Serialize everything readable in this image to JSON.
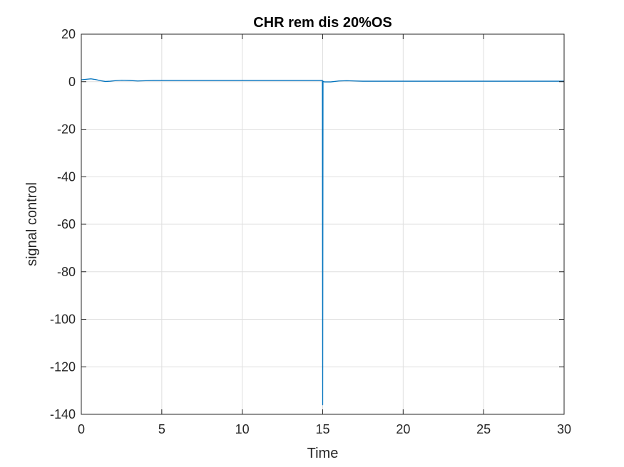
{
  "chart_data": {
    "type": "line",
    "title": "CHR rem dis 20%OS",
    "xlabel": "Time",
    "ylabel": "signal control",
    "xlim": [
      0,
      30
    ],
    "ylim": [
      -140,
      20
    ],
    "xticks": [
      0,
      5,
      10,
      15,
      20,
      25,
      30
    ],
    "yticks": [
      20,
      0,
      -20,
      -40,
      -60,
      -80,
      -100,
      -120,
      -140
    ],
    "xtick_labels": [
      "0",
      "5",
      "10",
      "15",
      "20",
      "25",
      "30"
    ],
    "ytick_labels": [
      "20",
      "0",
      "-20",
      "-40",
      "-60",
      "-80",
      "-100",
      "-120",
      "-140"
    ],
    "grid": true,
    "line_color": "#0072BD",
    "grid_color": "#dfdfdf",
    "axis_color": "#262626",
    "series": [
      {
        "x": [
          0,
          0.3,
          0.6,
          0.9,
          1.2,
          1.5,
          1.8,
          2.1,
          2.5,
          3.0,
          3.5,
          4.0,
          4.5,
          5.0,
          6.0,
          7.0,
          8.0,
          9.0,
          10.0,
          11.0,
          12.0,
          13.0,
          14.0,
          14.9,
          14.98,
          15.0,
          15.02,
          15.1,
          15.5,
          16.0,
          16.5,
          17.0,
          17.5,
          18.0,
          19.0,
          20.0,
          22.0,
          24.0,
          26.0,
          28.0,
          30.0
        ],
        "y": [
          0.8,
          1.0,
          1.2,
          0.9,
          0.4,
          0.1,
          0.2,
          0.4,
          0.6,
          0.5,
          0.3,
          0.4,
          0.5,
          0.5,
          0.5,
          0.5,
          0.5,
          0.5,
          0.5,
          0.5,
          0.5,
          0.5,
          0.5,
          0.5,
          0.5,
          -136,
          0.2,
          -0.1,
          -0.1,
          0.3,
          0.4,
          0.3,
          0.2,
          0.2,
          0.2,
          0.2,
          0.2,
          0.2,
          0.2,
          0.2,
          0.2
        ]
      }
    ]
  }
}
